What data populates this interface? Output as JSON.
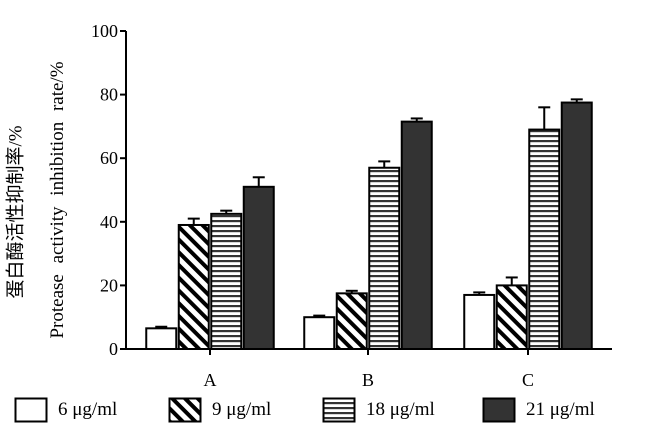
{
  "chart_data": {
    "type": "bar",
    "title": "",
    "xlabel": "",
    "ylabel_cn": "蛋白酶活性抑制率/%",
    "ylabel_en": "Protease activity inhibition rate/%",
    "categories": [
      "A",
      "B",
      "C"
    ],
    "ylim": [
      0,
      100
    ],
    "yticks": [
      0,
      20,
      40,
      60,
      80,
      100
    ],
    "series": [
      {
        "name": "6 μg/ml",
        "pattern": "white",
        "values": [
          6.5,
          10,
          17
        ],
        "errors": [
          0.5,
          0.5,
          0.8
        ]
      },
      {
        "name": "9 μg/ml",
        "pattern": "diagonal",
        "values": [
          39,
          17.5,
          20
        ],
        "errors": [
          2,
          0.8,
          2.5
        ]
      },
      {
        "name": "18 μg/ml",
        "pattern": "horizontal",
        "values": [
          42.5,
          57,
          69
        ],
        "errors": [
          1,
          2,
          7
        ]
      },
      {
        "name": "21 μg/ml",
        "pattern": "dark",
        "values": [
          51,
          71.5,
          77.5
        ],
        "errors": [
          3,
          1,
          1
        ]
      }
    ],
    "grid": false,
    "legend_position": "bottom"
  }
}
